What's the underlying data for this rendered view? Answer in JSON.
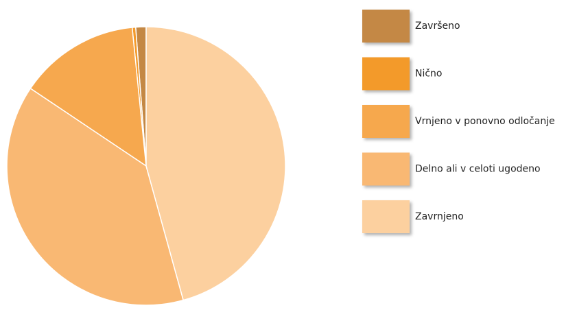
{
  "chart_data": {
    "type": "pie",
    "categories": [
      "Završeno",
      "Nično",
      "Vrnjeno v ponovno odločanje",
      "Delno ali v celoti ugodeno",
      "Zavrnjeno"
    ],
    "values": [
      1.2,
      0.4,
      14.0,
      38.7,
      45.7
    ],
    "colors": [
      "#c48844",
      "#f39a2b",
      "#f6a84e",
      "#f9b873",
      "#fcd09f"
    ]
  }
}
